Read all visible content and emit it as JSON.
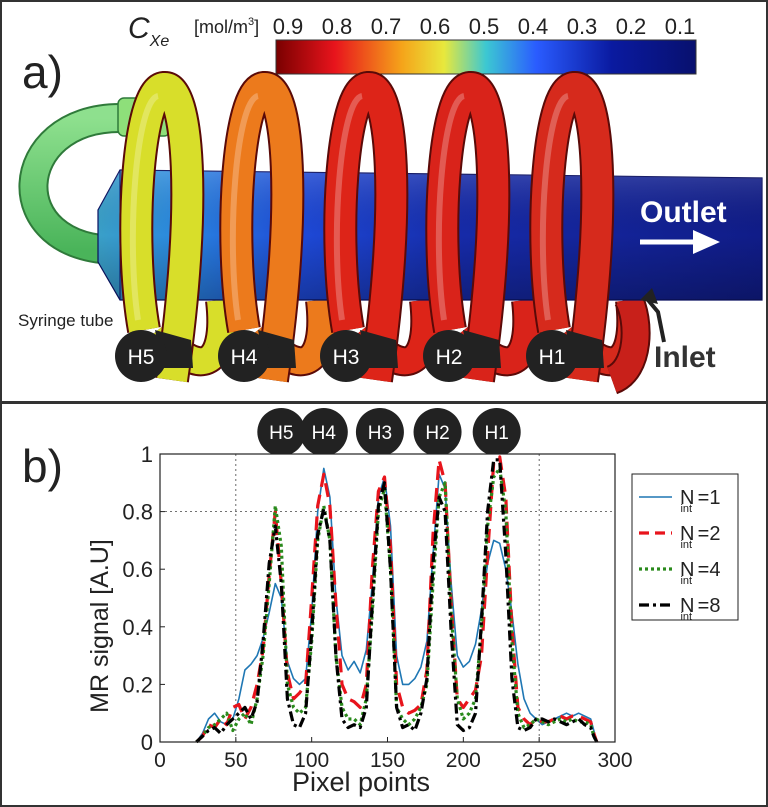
{
  "panel_a": {
    "label": "a)",
    "colorbar_title": "C",
    "colorbar_subscript": "Xe",
    "colorbar_unit": "[mol/m",
    "colorbar_unit_sup": "3",
    "colorbar_unit_end": "]",
    "colorbar_ticks": [
      "0.9",
      "0.8",
      "0.7",
      "0.6",
      "0.5",
      "0.4",
      "0.3",
      "0.2",
      "0.1"
    ],
    "colorbar_colors": [
      "#7a0000",
      "#e8141c",
      "#f5a41a",
      "#e8e83c",
      "#3cc8d2",
      "#2a5cff",
      "#0a1aa0",
      "#08106e"
    ],
    "outlet_label": "Outlet",
    "inlet_label": "Inlet",
    "syringe_label": "Syringe tube",
    "hole_labels": [
      "H5",
      "H4",
      "H3",
      "H2",
      "H1"
    ],
    "coil_colors": [
      "#d8de2a",
      "#ec7a1c",
      "#dd2418",
      "#d9231a",
      "#d62a1c"
    ]
  },
  "panel_b": {
    "label": "b)",
    "hole_labels": [
      "H5",
      "H4",
      "H3",
      "H2",
      "H1"
    ]
  },
  "chart_data": {
    "type": "line",
    "title": "",
    "xlabel": "Pixel points",
    "ylabel": "MR signal [A.U]",
    "xlim": [
      0,
      300
    ],
    "ylim": [
      0,
      1
    ],
    "xticks": [
      "0",
      "50",
      "100",
      "150",
      "200",
      "250",
      "300"
    ],
    "yticks": [
      "0",
      "0.2",
      "0.4",
      "0.6",
      "0.8",
      "1"
    ],
    "grid": "dotted lines at x=50, x=250, y=0.8",
    "legend_position": "right, outside",
    "legend": [
      {
        "main": "N",
        "sub": "int",
        "suffix": " =1"
      },
      {
        "main": "N",
        "sub": "int",
        "suffix": " =2"
      },
      {
        "main": "N",
        "sub": "int",
        "suffix": " =4"
      },
      {
        "main": "N",
        "sub": "int",
        "suffix": " =8"
      }
    ],
    "series": [
      {
        "color": "#1f77b4",
        "style": "solid",
        "x": [
          24,
          28,
          32,
          36,
          40,
          44,
          48,
          52,
          56,
          60,
          64,
          68,
          72,
          76,
          80,
          84,
          88,
          92,
          96,
          100,
          104,
          108,
          112,
          116,
          120,
          124,
          128,
          132,
          136,
          140,
          144,
          148,
          152,
          156,
          160,
          164,
          168,
          172,
          176,
          180,
          184,
          188,
          192,
          196,
          200,
          204,
          208,
          212,
          216,
          220,
          224,
          228,
          232,
          236,
          240,
          244,
          248,
          252,
          256,
          260,
          264,
          268,
          272,
          276,
          280,
          284,
          286,
          288
        ],
        "y": [
          0.0,
          0.03,
          0.08,
          0.1,
          0.07,
          0.06,
          0.08,
          0.15,
          0.25,
          0.27,
          0.3,
          0.36,
          0.45,
          0.55,
          0.5,
          0.28,
          0.22,
          0.2,
          0.22,
          0.45,
          0.8,
          0.95,
          0.85,
          0.5,
          0.3,
          0.25,
          0.28,
          0.24,
          0.32,
          0.55,
          0.85,
          0.92,
          0.75,
          0.3,
          0.2,
          0.2,
          0.22,
          0.26,
          0.35,
          0.65,
          0.93,
          0.88,
          0.55,
          0.3,
          0.26,
          0.28,
          0.34,
          0.46,
          0.62,
          0.7,
          0.69,
          0.6,
          0.45,
          0.27,
          0.15,
          0.1,
          0.08,
          0.06,
          0.07,
          0.08,
          0.09,
          0.1,
          0.09,
          0.1,
          0.09,
          0.08,
          0.04,
          0.0
        ]
      },
      {
        "color": "#e8141c",
        "style": "dashed",
        "x": [
          24,
          28,
          32,
          36,
          40,
          44,
          48,
          52,
          56,
          60,
          64,
          68,
          72,
          76,
          80,
          84,
          88,
          92,
          96,
          100,
          104,
          108,
          112,
          116,
          120,
          124,
          128,
          132,
          136,
          140,
          144,
          148,
          152,
          156,
          160,
          164,
          168,
          172,
          176,
          180,
          184,
          188,
          192,
          196,
          200,
          204,
          208,
          212,
          216,
          220,
          224,
          228,
          232,
          236,
          240,
          244,
          248,
          252,
          256,
          260,
          264,
          268,
          272,
          276,
          280,
          284,
          286,
          288
        ],
        "y": [
          0.0,
          0.02,
          0.06,
          0.05,
          0.08,
          0.06,
          0.12,
          0.13,
          0.08,
          0.12,
          0.2,
          0.32,
          0.58,
          0.8,
          0.55,
          0.24,
          0.15,
          0.17,
          0.2,
          0.5,
          0.82,
          0.93,
          0.82,
          0.48,
          0.2,
          0.15,
          0.14,
          0.12,
          0.2,
          0.6,
          0.87,
          0.92,
          0.68,
          0.2,
          0.12,
          0.1,
          0.11,
          0.13,
          0.25,
          0.72,
          0.98,
          0.9,
          0.48,
          0.15,
          0.12,
          0.15,
          0.18,
          0.3,
          0.65,
          0.97,
          0.99,
          0.85,
          0.4,
          0.12,
          0.08,
          0.06,
          0.08,
          0.07,
          0.07,
          0.08,
          0.09,
          0.08,
          0.09,
          0.09,
          0.08,
          0.07,
          0.03,
          0.0
        ]
      },
      {
        "color": "#2a8a1c",
        "style": "dotted",
        "x": [
          24,
          28,
          32,
          36,
          40,
          44,
          48,
          52,
          56,
          60,
          64,
          68,
          72,
          76,
          80,
          84,
          88,
          92,
          96,
          100,
          104,
          108,
          112,
          116,
          120,
          124,
          128,
          132,
          136,
          140,
          144,
          148,
          152,
          156,
          160,
          164,
          168,
          172,
          176,
          180,
          184,
          188,
          192,
          196,
          200,
          204,
          208,
          212,
          216,
          220,
          224,
          228,
          232,
          236,
          240,
          244,
          248,
          252,
          256,
          260,
          264,
          268,
          272,
          276,
          280,
          284,
          286,
          288
        ],
        "y": [
          0.0,
          0.02,
          0.05,
          0.06,
          0.08,
          0.1,
          0.04,
          0.08,
          0.1,
          0.06,
          0.15,
          0.3,
          0.55,
          0.82,
          0.68,
          0.2,
          0.12,
          0.1,
          0.12,
          0.35,
          0.7,
          0.82,
          0.7,
          0.3,
          0.12,
          0.08,
          0.08,
          0.06,
          0.15,
          0.45,
          0.8,
          0.88,
          0.6,
          0.12,
          0.08,
          0.06,
          0.08,
          0.12,
          0.2,
          0.55,
          0.85,
          0.9,
          0.45,
          0.15,
          0.08,
          0.1,
          0.15,
          0.4,
          0.75,
          0.92,
          0.95,
          0.8,
          0.35,
          0.1,
          0.05,
          0.06,
          0.08,
          0.07,
          0.06,
          0.07,
          0.08,
          0.07,
          0.08,
          0.07,
          0.07,
          0.06,
          0.02,
          0.0
        ]
      },
      {
        "color": "#000000",
        "style": "dashdot",
        "x": [
          24,
          28,
          32,
          36,
          40,
          44,
          48,
          52,
          56,
          60,
          64,
          68,
          72,
          76,
          80,
          84,
          88,
          92,
          96,
          100,
          104,
          108,
          112,
          116,
          120,
          124,
          128,
          132,
          136,
          140,
          144,
          148,
          152,
          156,
          160,
          164,
          168,
          172,
          176,
          180,
          184,
          188,
          192,
          196,
          200,
          204,
          208,
          212,
          216,
          220,
          224,
          228,
          232,
          236,
          240,
          244,
          248,
          252,
          256,
          260,
          264,
          268,
          272,
          276,
          280,
          284,
          286,
          288
        ],
        "y": [
          0.0,
          0.02,
          0.04,
          0.05,
          0.03,
          0.06,
          0.08,
          0.1,
          0.12,
          0.08,
          0.14,
          0.35,
          0.62,
          0.75,
          0.55,
          0.15,
          0.06,
          0.05,
          0.1,
          0.38,
          0.72,
          0.81,
          0.7,
          0.3,
          0.08,
          0.05,
          0.06,
          0.05,
          0.12,
          0.48,
          0.82,
          0.9,
          0.6,
          0.12,
          0.05,
          0.06,
          0.04,
          0.1,
          0.22,
          0.62,
          0.85,
          0.8,
          0.38,
          0.06,
          0.04,
          0.05,
          0.1,
          0.42,
          0.8,
          0.98,
          0.98,
          0.65,
          0.22,
          0.05,
          0.04,
          0.05,
          0.08,
          0.08,
          0.07,
          0.08,
          0.07,
          0.06,
          0.07,
          0.08,
          0.06,
          0.05,
          0.02,
          0.0
        ]
      }
    ]
  }
}
